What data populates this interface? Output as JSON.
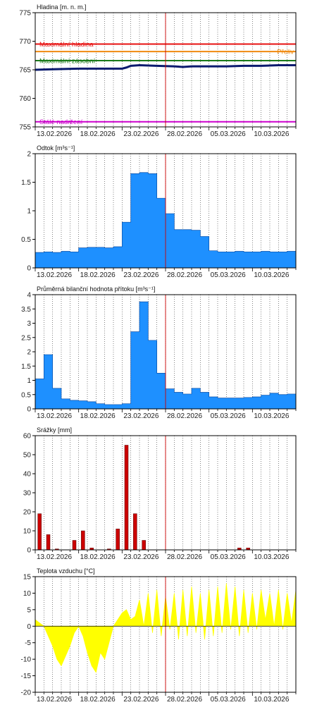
{
  "colors": {
    "frame": "#000000",
    "grid": "#333333",
    "fill": "#1e90ff",
    "fill_stroke": "#0a4fa8",
    "level_line": "#0a1a6e",
    "rain_bar": "#cc0000",
    "temp_fill": "#ffff00",
    "current_marker": "#cc0000",
    "max_level": "#e81010",
    "overflow": "#f08a10",
    "max_storage": "#1a7a1a",
    "permanent": "#cc00cc"
  },
  "x_labels": [
    "13.02.2026",
    "18.02.2026",
    "23.02.2026",
    "28.02.2026",
    "05.03.2026",
    "10.03.2026"
  ],
  "chart_data": [
    {
      "id": "hladina",
      "type": "line",
      "title": "Hladina [m. n. m.]",
      "ylim": [
        755,
        775
      ],
      "yticks": [
        755,
        760,
        765,
        770,
        775
      ],
      "grid": "vertical-dotted",
      "reference_lines": [
        {
          "name": "Maximální hladina",
          "value": 769.5,
          "color": "#e81010",
          "label_side": "left"
        },
        {
          "name": "Přeliv",
          "value": 768.2,
          "color": "#f08a10",
          "label_side": "right"
        },
        {
          "name": "Maximální zásobní",
          "value": 766.6,
          "color": "#1a7a1a",
          "label_side": "left"
        },
        {
          "name": "Stálé nadržení",
          "value": 755.9,
          "color": "#cc00cc",
          "label_side": "left"
        }
      ],
      "series": [
        {
          "x": [
            0,
            2,
            5,
            8,
            10,
            10.5,
            11,
            12,
            14,
            16,
            17,
            18,
            20,
            22,
            24,
            26,
            28,
            30
          ],
          "values": [
            765.0,
            765.1,
            765.2,
            765.2,
            765.2,
            765.4,
            765.7,
            765.8,
            765.7,
            765.6,
            765.5,
            765.6,
            765.6,
            765.6,
            765.7,
            765.7,
            765.8,
            765.8
          ]
        }
      ]
    },
    {
      "id": "odtok",
      "type": "area",
      "title": "Odtok [m³s⁻¹]",
      "ylim": [
        0,
        2
      ],
      "yticks": [
        0,
        0.5,
        1,
        1.5,
        2
      ],
      "series": [
        {
          "x": [
            0,
            1,
            2,
            3,
            4,
            5,
            6,
            7,
            8,
            9,
            10,
            11,
            12,
            13,
            14,
            15,
            16,
            17,
            18,
            19,
            20,
            21,
            22,
            23,
            24,
            25,
            26,
            27,
            28,
            29,
            30
          ],
          "values": [
            0.27,
            0.28,
            0.27,
            0.29,
            0.28,
            0.35,
            0.36,
            0.36,
            0.35,
            0.37,
            0.8,
            1.65,
            1.67,
            1.65,
            1.22,
            0.95,
            0.67,
            0.67,
            0.66,
            0.55,
            0.3,
            0.28,
            0.28,
            0.29,
            0.28,
            0.28,
            0.29,
            0.28,
            0.28,
            0.29,
            0.3
          ]
        }
      ]
    },
    {
      "id": "pritok",
      "type": "area",
      "title": "Průměrná bilanční hodnota přítoku [m³s⁻¹]",
      "ylim": [
        0,
        4
      ],
      "yticks": [
        0,
        0.5,
        1,
        1.5,
        2,
        2.5,
        3,
        3.5,
        4
      ],
      "series": [
        {
          "x": [
            0,
            1,
            2,
            3,
            4,
            5,
            6,
            7,
            8,
            9,
            10,
            11,
            12,
            13,
            14,
            15,
            16,
            17,
            18,
            19,
            20,
            21,
            22,
            23,
            24,
            25,
            26,
            27,
            28,
            29,
            30
          ],
          "values": [
            1.05,
            1.9,
            0.72,
            0.35,
            0.3,
            0.28,
            0.25,
            0.18,
            0.15,
            0.15,
            0.18,
            2.7,
            3.75,
            2.4,
            1.25,
            0.7,
            0.58,
            0.52,
            0.72,
            0.58,
            0.42,
            0.38,
            0.38,
            0.38,
            0.4,
            0.42,
            0.48,
            0.55,
            0.5,
            0.52,
            0.5
          ]
        }
      ]
    },
    {
      "id": "srazky",
      "type": "bar",
      "title": "Srážky [mm]",
      "ylim": [
        0,
        60
      ],
      "yticks": [
        0,
        10,
        20,
        30,
        40,
        50,
        60
      ],
      "series": [
        {
          "x": [
            0,
            1,
            2,
            4,
            5,
            6,
            8,
            9,
            10,
            11,
            12,
            23,
            24
          ],
          "values": [
            19,
            8,
            0.5,
            5,
            10,
            1,
            0.5,
            11,
            55,
            19,
            5,
            1,
            1
          ]
        }
      ]
    },
    {
      "id": "teplota",
      "type": "area",
      "title": "Teplota vzduchu [°C]",
      "ylim": [
        -20,
        15
      ],
      "yticks": [
        -20,
        -15,
        -10,
        -5,
        0,
        5,
        10,
        15
      ],
      "series": [
        {
          "x": [
            0,
            0.5,
            1,
            1.5,
            2,
            2.5,
            3,
            3.5,
            4,
            4.5,
            5,
            5.5,
            6,
            6.5,
            7,
            7.5,
            8,
            8.5,
            9,
            9.5,
            10,
            10.5,
            11,
            11.5,
            12,
            12.5,
            13,
            13.5,
            14,
            14.5,
            15,
            15.5,
            16,
            16.5,
            17,
            17.5,
            18,
            18.5,
            19,
            19.5,
            20,
            20.5,
            21,
            21.5,
            22,
            22.5,
            23,
            23.5,
            24,
            24.5,
            25,
            25.5,
            26,
            26.5,
            27,
            27.5,
            28,
            28.5,
            29,
            29.5,
            30
          ],
          "values": [
            2,
            1,
            0,
            -3,
            -6,
            -10,
            -12,
            -9,
            -6,
            -2,
            0,
            -3,
            -8,
            -12,
            -14,
            -8,
            -10,
            -5,
            0,
            2,
            4,
            5,
            2,
            3,
            8,
            0,
            10,
            -2,
            11,
            -3,
            9,
            -1,
            10,
            -4,
            11,
            -3,
            12,
            -2,
            10,
            -4,
            11,
            -3,
            12,
            -2,
            13,
            -1,
            12,
            -3,
            11,
            -2,
            10,
            -1,
            11,
            2,
            10,
            0,
            11,
            -1,
            10,
            1,
            11
          ]
        }
      ]
    }
  ]
}
